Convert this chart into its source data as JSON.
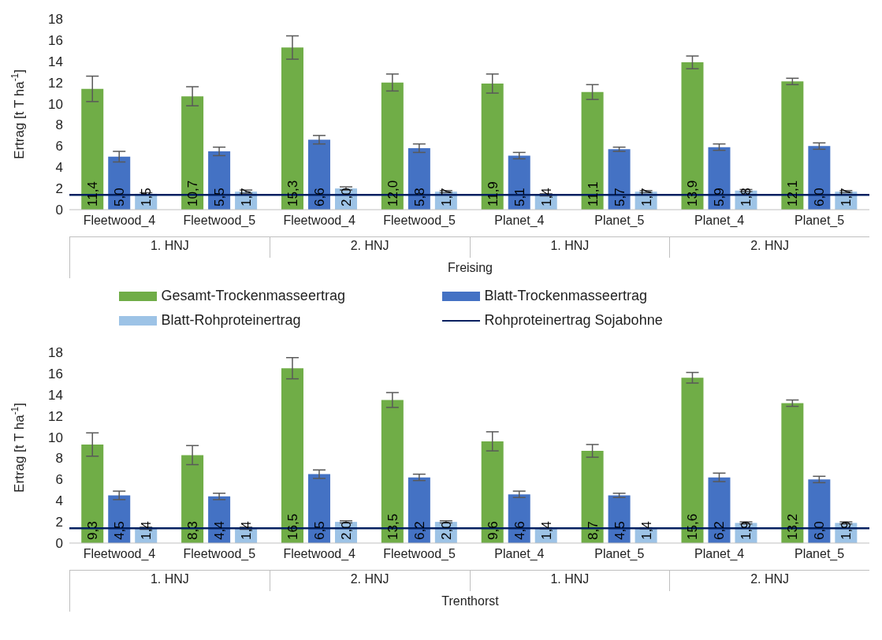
{
  "chart_data": [
    {
      "type": "bar",
      "xlabel": "Freising",
      "ylabel": "Ertrag [t T ha$^{-1}$]",
      "categories": [
        "Fleetwood_4",
        "Fleetwood_5",
        "Fleetwood_4",
        "Fleetwood_5",
        "Planet_4",
        "Planet_5",
        "Planet_4",
        "Planet_5"
      ],
      "annotations": [
        "1. HNJ",
        "2. HNJ",
        "1. HNJ",
        "2. HNJ"
      ],
      "series": [
        {
          "name": "Gesamt-Trockenmasseertrag",
          "color": "#70ad47",
          "values": [
            11.4,
            10.7,
            15.3,
            12.0,
            11.9,
            11.1,
            13.9,
            12.1
          ],
          "errors": [
            1.2,
            0.9,
            1.1,
            0.8,
            0.9,
            0.7,
            0.6,
            0.3
          ],
          "value_labels": [
            "11,4",
            "10,7",
            "15,3",
            "12,0",
            "11,9",
            "11,1",
            "13,9",
            "12,1"
          ]
        },
        {
          "name": "Blatt-Trockenmasseertrag",
          "color": "#4472c4",
          "values": [
            5.0,
            5.5,
            6.6,
            5.8,
            5.1,
            5.7,
            5.9,
            6.0
          ],
          "errors": [
            0.5,
            0.4,
            0.4,
            0.4,
            0.3,
            0.2,
            0.3,
            0.3
          ],
          "value_labels": [
            "5,0",
            "5,5",
            "6,6",
            "5,8",
            "5,1",
            "5,7",
            "5,9",
            "6,0"
          ]
        },
        {
          "name": "Blatt-Rohproteinertrag",
          "color": "#9dc3e6",
          "values": [
            1.5,
            1.7,
            2.0,
            1.7,
            1.4,
            1.7,
            1.8,
            1.7
          ],
          "errors": [
            0.1,
            0.15,
            0.15,
            0.1,
            0.1,
            0.1,
            0.1,
            0.1
          ],
          "value_labels": [
            "1,5",
            "1,7",
            "2,0",
            "1,7",
            "1,4",
            "1,7",
            "1,8",
            "1,7"
          ]
        }
      ],
      "ref_lines": [
        {
          "axis": "y",
          "value": 1.4,
          "label": "Rohproteinertrag Sojabohne",
          "color": "#002060"
        }
      ],
      "ylim": [
        0,
        18
      ],
      "yticks": [
        0,
        2,
        4,
        6,
        8,
        10,
        12,
        14,
        16,
        18
      ],
      "legend": "bottom"
    },
    {
      "type": "bar",
      "xlabel": "Trenthorst",
      "ylabel": "Ertrag [t T ha$^{-1}$]",
      "categories": [
        "Fleetwood_4",
        "Fleetwood_5",
        "Fleetwood_4",
        "Fleetwood_5",
        "Planet_4",
        "Planet_5",
        "Planet_4",
        "Planet_5"
      ],
      "annotations": [
        "1. HNJ",
        "2. HNJ",
        "1. HNJ",
        "2. HNJ"
      ],
      "series": [
        {
          "color": "#70ad47",
          "values": [
            9.3,
            8.3,
            16.5,
            13.5,
            9.6,
            8.7,
            15.6,
            13.2
          ],
          "errors": [
            1.1,
            0.9,
            1.0,
            0.7,
            0.9,
            0.6,
            0.5,
            0.3
          ],
          "value_labels": [
            "9,3",
            "8,3",
            "16,5",
            "13,5",
            "9,6",
            "8,7",
            "15,6",
            "13,2"
          ]
        },
        {
          "color": "#4472c4",
          "values": [
            4.5,
            4.4,
            6.5,
            6.2,
            4.6,
            4.5,
            6.2,
            6.0
          ],
          "errors": [
            0.4,
            0.3,
            0.4,
            0.3,
            0.3,
            0.2,
            0.4,
            0.3
          ],
          "value_labels": [
            "4,5",
            "4,4",
            "6,5",
            "6,2",
            "4,6",
            "4,5",
            "6,2",
            "6,0"
          ]
        },
        {
          "color": "#9dc3e6",
          "values": [
            1.4,
            1.4,
            2.0,
            2.0,
            1.4,
            1.4,
            1.9,
            1.9
          ],
          "errors": [
            0.1,
            0.1,
            0.1,
            0.1,
            0.05,
            0.05,
            0.1,
            0.1
          ],
          "value_labels": [
            "1,4",
            "1,4",
            "2,0",
            "2,0",
            "1,4",
            "1,4",
            "1,9",
            "1,9"
          ]
        }
      ],
      "ref_lines": [
        {
          "axis": "y",
          "value": 1.4,
          "color": "#002060"
        }
      ],
      "ylim": [
        0,
        18
      ],
      "yticks": [
        0,
        2,
        4,
        6,
        8,
        10,
        12,
        14,
        16,
        18
      ]
    }
  ]
}
